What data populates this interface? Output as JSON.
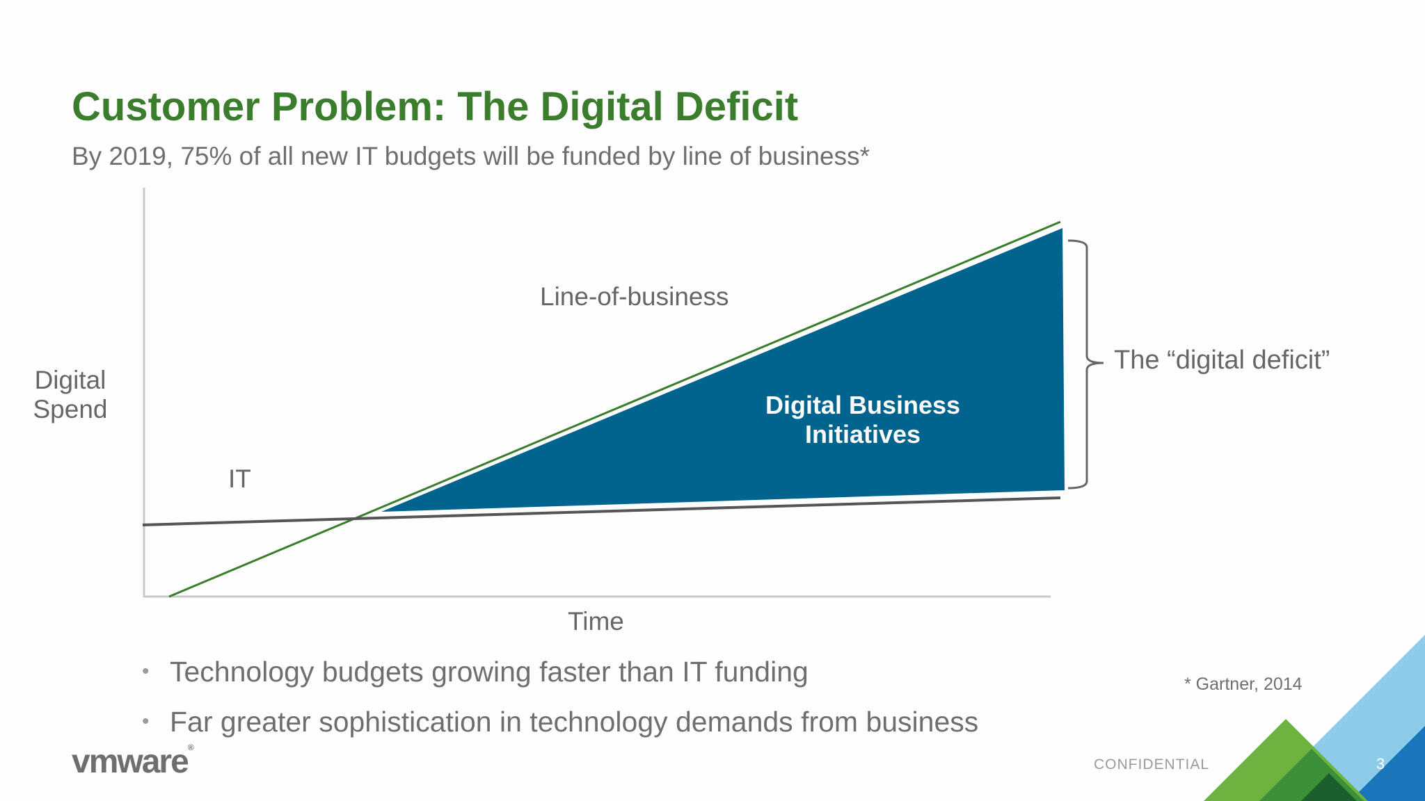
{
  "slide": {
    "title": "Customer Problem: The Digital Deficit",
    "subtitle": "By 2019, 75% of all new IT budgets will be funded by line of business*"
  },
  "diagram": {
    "y_axis_label_line1": "Digital",
    "y_axis_label_line2": "Spend",
    "x_axis_label": "Time",
    "lob_label": "Line-of-business",
    "it_label": "IT",
    "area_label_line1": "Digital Business",
    "area_label_line2": "Initiatives",
    "bracket_label": "The “digital deficit”",
    "colors": {
      "lob_line": "#3a7d2c",
      "it_line": "#555555",
      "deficit_area": "#00648f",
      "axis": "#c8c8c8",
      "bracket": "#666666"
    }
  },
  "bullets": [
    "Technology budgets growing faster than IT funding",
    "Far greater sophistication in technology demands from business"
  ],
  "footer": {
    "source": "* Gartner, 2014",
    "logo": "vmware",
    "logo_mark": "®",
    "confidential": "CONFIDENTIAL",
    "page_number": "3",
    "corner_colors": [
      "#8dcbe8",
      "#1b75bb",
      "#6db33f",
      "#3d8f3a",
      "#1d5e2e"
    ]
  }
}
